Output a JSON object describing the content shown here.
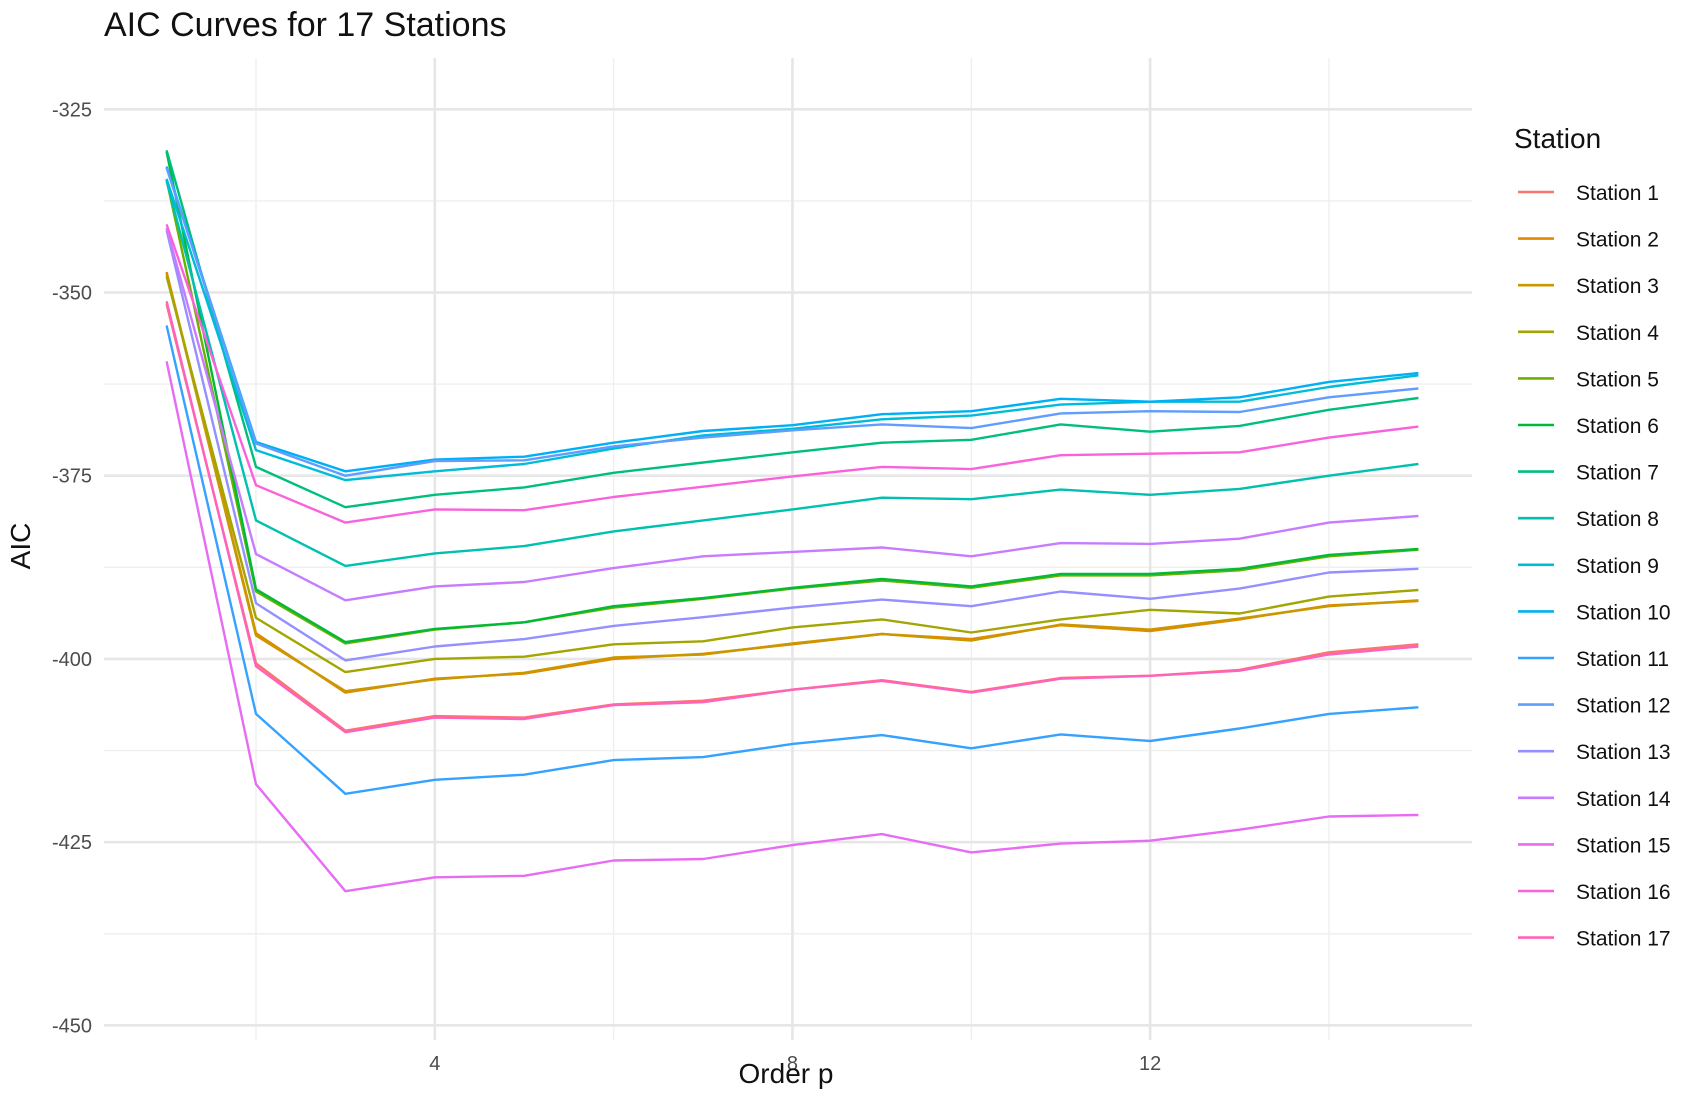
{
  "chart_data": {
    "type": "line",
    "title": "AIC Curves for 17 Stations",
    "xlabel": "Order p",
    "ylabel": "AIC",
    "xlim": [
      0.3,
      15.6
    ],
    "ylim": [
      -452,
      -318
    ],
    "x_major_ticks": [
      4,
      8,
      12
    ],
    "x_minor_ticks": [
      2,
      6,
      10,
      14
    ],
    "y_major_ticks": [
      -325,
      -350,
      -375,
      -400,
      -425,
      -450
    ],
    "y_minor_ticks": [
      -337.5,
      -362.5,
      -387.5,
      -412.5,
      -437.5
    ],
    "x_tick_labels": [
      "4",
      "8",
      "12"
    ],
    "y_tick_labels": [
      "-325",
      "-350",
      "-375",
      "-400",
      "-425",
      "-450"
    ],
    "grid": true,
    "legend": {
      "title": "Station",
      "position": "right"
    },
    "x": [
      1,
      2,
      3,
      4,
      5,
      6,
      7,
      8,
      9,
      10,
      11,
      12,
      13,
      14,
      15
    ],
    "series": [
      {
        "name": "Station 1",
        "color": "#F8766D",
        "values": [
          -351.6,
          -400.6,
          -409.8,
          -407.8,
          -408.0,
          -406.2,
          -405.7,
          -404.2,
          -402.9,
          -404.5,
          -402.6,
          -402.3,
          -401.5,
          -399.1,
          -398.0
        ]
      },
      {
        "name": "Station 2",
        "color": "#E58700",
        "values": [
          -347.2,
          -396.5,
          -404.6,
          -402.7,
          -402.0,
          -400.0,
          -399.3,
          -398.0,
          -396.6,
          -397.3,
          -395.4,
          -396.2,
          -394.6,
          -392.7,
          -392.1
        ]
      },
      {
        "name": "Station 3",
        "color": "#C99800",
        "values": [
          -347.4,
          -396.8,
          -404.4,
          -402.8,
          -401.9,
          -399.8,
          -399.4,
          -397.9,
          -396.6,
          -397.5,
          -395.3,
          -396.0,
          -394.5,
          -392.8,
          -392.0
        ]
      },
      {
        "name": "Station 4",
        "color": "#A3A500",
        "values": [
          -347.8,
          -394.4,
          -401.8,
          -400.0,
          -399.7,
          -398.0,
          -397.6,
          -395.7,
          -394.6,
          -396.4,
          -394.6,
          -393.3,
          -393.8,
          -391.5,
          -390.6
        ]
      },
      {
        "name": "Station 5",
        "color": "#6BB100",
        "values": [
          -334.6,
          -390.8,
          -397.9,
          -396.0,
          -395.0,
          -393.0,
          -391.8,
          -390.4,
          -389.3,
          -390.3,
          -388.6,
          -388.6,
          -387.9,
          -386.0,
          -385.1
        ]
      },
      {
        "name": "Station 6",
        "color": "#00BA38",
        "values": [
          -330.8,
          -390.5,
          -397.7,
          -395.9,
          -395.0,
          -392.8,
          -391.7,
          -390.3,
          -389.1,
          -390.1,
          -388.4,
          -388.4,
          -387.7,
          -385.8,
          -385.0
        ]
      },
      {
        "name": "Station 7",
        "color": "#00BF7D",
        "values": [
          -330.6,
          -373.8,
          -379.3,
          -377.6,
          -376.6,
          -374.6,
          -373.2,
          -371.8,
          -370.5,
          -370.1,
          -368.0,
          -369.0,
          -368.2,
          -366.0,
          -364.4
        ]
      },
      {
        "name": "Station 8",
        "color": "#00C0AF",
        "values": [
          -334.8,
          -381.1,
          -387.3,
          -385.6,
          -384.6,
          -382.6,
          -381.1,
          -379.6,
          -378.0,
          -378.2,
          -376.9,
          -377.6,
          -376.8,
          -375.0,
          -373.4
        ]
      },
      {
        "name": "Station 9",
        "color": "#00BCD8",
        "values": [
          -334.5,
          -371.5,
          -375.6,
          -374.4,
          -373.4,
          -371.3,
          -369.5,
          -368.6,
          -367.3,
          -366.8,
          -365.3,
          -364.9,
          -364.9,
          -362.9,
          -361.3
        ]
      },
      {
        "name": "Station 10",
        "color": "#00B0F6",
        "values": [
          -332.8,
          -370.4,
          -374.4,
          -372.8,
          -372.4,
          -370.5,
          -368.9,
          -368.1,
          -366.6,
          -366.2,
          -364.5,
          -364.9,
          -364.3,
          -362.2,
          -361.0
        ]
      },
      {
        "name": "Station 11",
        "color": "#35A2FF",
        "values": [
          -354.5,
          -407.5,
          -418.4,
          -416.5,
          -415.8,
          -413.8,
          -413.4,
          -411.6,
          -410.4,
          -412.2,
          -410.3,
          -411.2,
          -409.5,
          -407.5,
          -406.6
        ]
      },
      {
        "name": "Station 12",
        "color": "#619CFF",
        "values": [
          -333.0,
          -370.6,
          -375.0,
          -373.0,
          -372.9,
          -371.0,
          -369.8,
          -368.8,
          -368.0,
          -368.5,
          -366.5,
          -366.2,
          -366.3,
          -364.3,
          -363.1
        ]
      },
      {
        "name": "Station 13",
        "color": "#9590FF",
        "values": [
          -341.5,
          -392.4,
          -400.2,
          -398.3,
          -397.3,
          -395.5,
          -394.3,
          -393.0,
          -391.9,
          -392.8,
          -390.8,
          -391.8,
          -390.4,
          -388.2,
          -387.7
        ]
      },
      {
        "name": "Station 14",
        "color": "#C77CFF",
        "values": [
          -341.2,
          -385.7,
          -392.0,
          -390.1,
          -389.5,
          -387.6,
          -386.0,
          -385.4,
          -384.8,
          -386.0,
          -384.2,
          -384.3,
          -383.6,
          -381.4,
          -380.5
        ]
      },
      {
        "name": "Station 15",
        "color": "#E76BF3",
        "values": [
          -359.4,
          -417.1,
          -431.7,
          -429.8,
          -429.6,
          -427.5,
          -427.3,
          -425.4,
          -423.9,
          -426.4,
          -425.2,
          -424.8,
          -423.3,
          -421.5,
          -421.3
        ]
      },
      {
        "name": "Station 16",
        "color": "#FA62DB",
        "values": [
          -340.7,
          -376.3,
          -381.4,
          -379.6,
          -379.7,
          -377.9,
          -376.5,
          -375.1,
          -373.8,
          -374.1,
          -372.2,
          -372.0,
          -371.8,
          -369.8,
          -368.3
        ]
      },
      {
        "name": "Station 17",
        "color": "#FF62BC",
        "values": [
          -351.2,
          -401.0,
          -410.0,
          -408.0,
          -408.2,
          -406.3,
          -405.9,
          -404.2,
          -403.0,
          -404.6,
          -402.7,
          -402.3,
          -401.6,
          -399.4,
          -398.3
        ]
      }
    ]
  }
}
